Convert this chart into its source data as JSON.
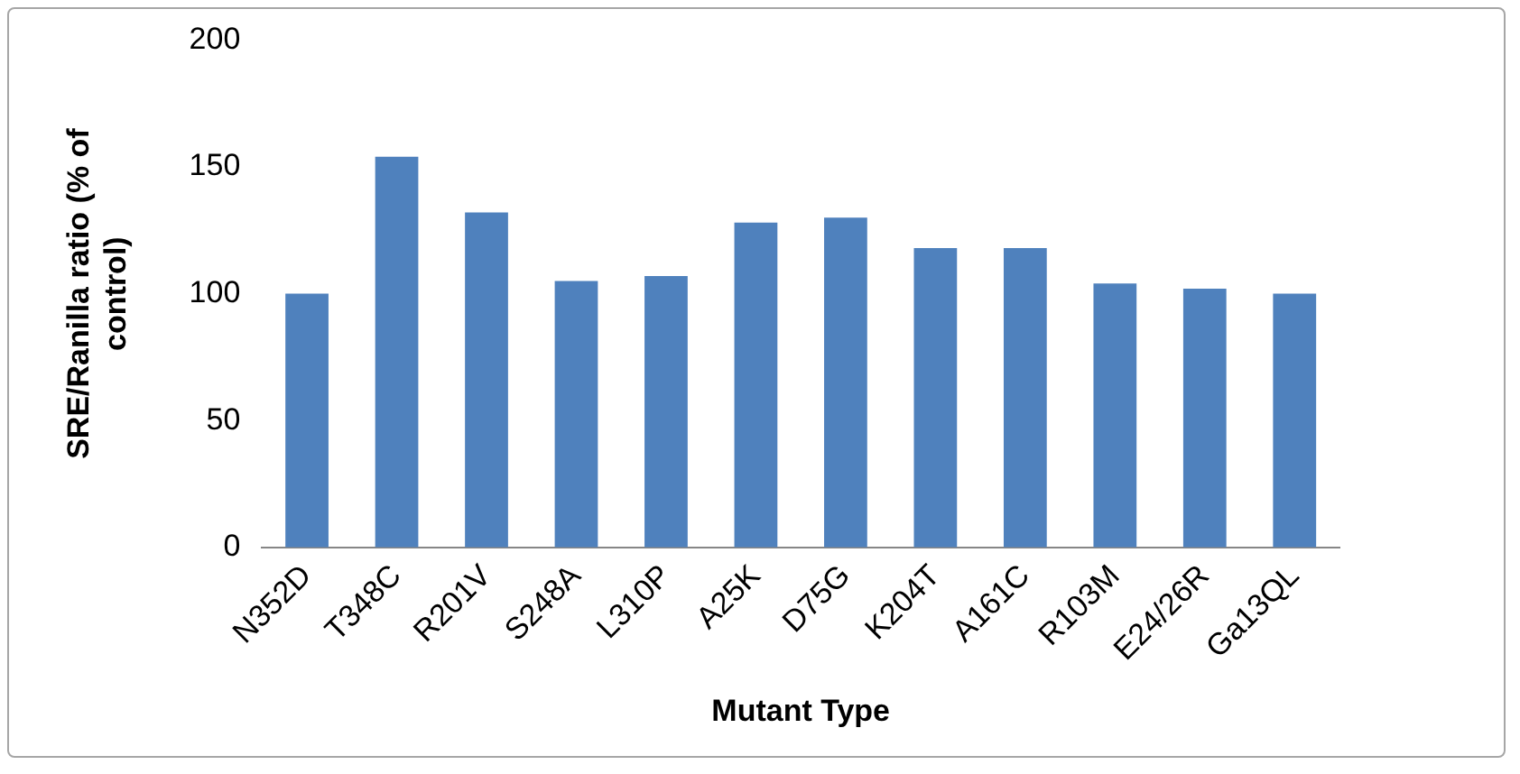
{
  "chart_data": {
    "type": "bar",
    "xlabel": "Mutant Type",
    "ylabel": "SRE/Ranilla ratio (% of control)",
    "categories": [
      "N352D",
      "T348C",
      "R201V",
      "S248A",
      "L310P",
      "A25K",
      "D75G",
      "K204T",
      "A161C",
      "R103M",
      "E24/26R",
      "Ga13QL"
    ],
    "values": [
      100,
      154,
      132,
      105,
      107,
      128,
      130,
      118,
      118,
      104,
      102,
      100
    ],
    "color": "#4f81bd",
    "ylim": [
      0,
      200
    ],
    "yticks": [
      0,
      50,
      100,
      150,
      200
    ],
    "grid": false,
    "legend": false
  }
}
